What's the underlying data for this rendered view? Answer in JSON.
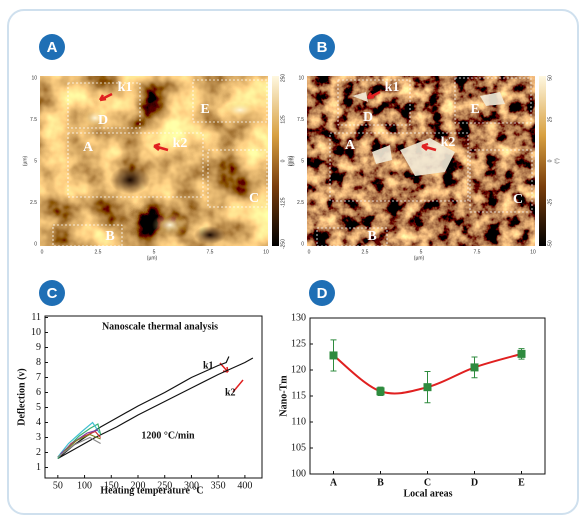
{
  "panels": {
    "labels": [
      "A",
      "B",
      "C",
      "D"
    ],
    "afm": [
      {
        "regions": [
          "k1",
          "D",
          "A",
          "k2",
          "E",
          "C",
          "B"
        ],
        "yticks": [
          "10",
          "7.5",
          "5",
          "2.5",
          "0"
        ],
        "xticks": [
          "0",
          "2.5",
          "5",
          "7.5",
          "10"
        ],
        "unit": "(µm)",
        "colorbar_ticks": [
          "250",
          "125",
          "0",
          "-125",
          "-250"
        ],
        "colorbar_unit": "(nm)"
      },
      {
        "regions": [
          "k1",
          "D",
          "A",
          "k2",
          "E",
          "C",
          "B"
        ],
        "yticks": [
          "10",
          "7.5",
          "5",
          "2.5",
          "0"
        ],
        "xticks": [
          "0",
          "2.5",
          "5",
          "7.5",
          "10"
        ],
        "unit": "(µm)",
        "colorbar_ticks": [
          "50",
          "25",
          "0",
          "-25",
          "-50"
        ],
        "colorbar_unit": "(°)"
      }
    ]
  },
  "chart_data": [
    {
      "type": "line",
      "title": "Nanoscale thermal analysis",
      "annotation": "1200 °C/min",
      "xlabel": "Heating temperature °C",
      "ylabel": "Deflection (v)",
      "xlim": [
        26,
        432
      ],
      "xticks": [
        50,
        100,
        150,
        200,
        250,
        300,
        350,
        400
      ],
      "ylim": [
        0.3,
        11.1
      ],
      "yticks": [
        1,
        2,
        3,
        4,
        5,
        6,
        7,
        8,
        9,
        10,
        11
      ],
      "series": [
        {
          "name": "k1",
          "color": "#111111",
          "x": [
            50,
            60,
            80,
            100,
            130,
            160,
            200,
            250,
            300,
            350,
            365,
            370
          ],
          "values": [
            1.6,
            1.9,
            2.5,
            3.0,
            3.7,
            4.3,
            5.1,
            6.0,
            7.0,
            7.8,
            8.0,
            8.4
          ]
        },
        {
          "name": "k2",
          "color": "#111111",
          "x": [
            50,
            80,
            120,
            160,
            200,
            250,
            300,
            350,
            400,
            415
          ],
          "values": [
            1.6,
            2.2,
            3.0,
            3.7,
            4.5,
            5.4,
            6.3,
            7.2,
            8.0,
            8.3
          ]
        },
        {
          "color": "#3cb371",
          "x": [
            50,
            70,
            90,
            110,
            125,
            130
          ],
          "values": [
            1.6,
            2.4,
            3.1,
            3.6,
            3.9,
            3.2
          ]
        },
        {
          "color": "#40c0d0",
          "x": [
            50,
            70,
            95,
            115,
            128
          ],
          "values": [
            1.7,
            2.6,
            3.4,
            4.0,
            3.3
          ]
        },
        {
          "color": "#d03030",
          "x": [
            55,
            75,
            100,
            120,
            130
          ],
          "values": [
            1.8,
            2.6,
            3.1,
            3.4,
            3.0
          ]
        },
        {
          "color": "#8040a0",
          "x": [
            55,
            80,
            105,
            125
          ],
          "values": [
            1.9,
            2.7,
            3.3,
            3.5
          ]
        },
        {
          "color": "#808020",
          "x": [
            60,
            85,
            110,
            130
          ],
          "values": [
            2.0,
            2.8,
            3.2,
            2.9
          ]
        },
        {
          "color": "#888888",
          "x": [
            50,
            80,
            110,
            130
          ],
          "values": [
            1.7,
            2.5,
            3.0,
            2.6
          ]
        }
      ]
    },
    {
      "type": "scatter",
      "xlabel": "Local areas",
      "ylabel": "Nano-Tm",
      "categories": [
        "A",
        "B",
        "C",
        "D",
        "E"
      ],
      "values": [
        122.8,
        115.9,
        116.7,
        120.5,
        123.1
      ],
      "errors": [
        3.0,
        0.8,
        3.0,
        2.0,
        1.0
      ],
      "color": "#2e8b3e",
      "fit_color": "#e02020",
      "ylim": [
        100,
        130
      ],
      "yticks": [
        100,
        105,
        110,
        115,
        120,
        125,
        130
      ]
    }
  ]
}
